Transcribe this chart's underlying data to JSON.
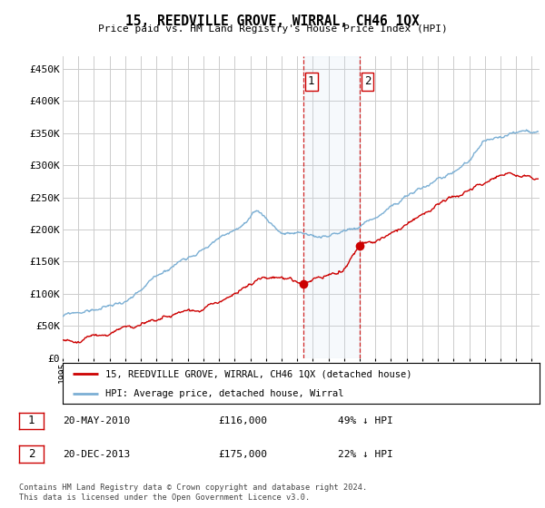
{
  "title": "15, REEDVILLE GROVE, WIRRAL, CH46 1QX",
  "subtitle": "Price paid vs. HM Land Registry's House Price Index (HPI)",
  "ylabel_ticks": [
    "£0",
    "£50K",
    "£100K",
    "£150K",
    "£200K",
    "£250K",
    "£300K",
    "£350K",
    "£400K",
    "£450K"
  ],
  "ytick_values": [
    0,
    50000,
    100000,
    150000,
    200000,
    250000,
    300000,
    350000,
    400000,
    450000
  ],
  "ylim": [
    0,
    470000
  ],
  "xlim_start": 1995.0,
  "xlim_end": 2025.5,
  "hpi_color": "#7bafd4",
  "sale_color": "#cc0000",
  "marker1_x": 2010.38,
  "marker1_y": 116000,
  "marker1_label": "1",
  "marker2_x": 2013.97,
  "marker2_y": 175000,
  "marker2_label": "2",
  "vline1_x": 2010.38,
  "vline2_x": 2013.97,
  "legend_sale": "15, REEDVILLE GROVE, WIRRAL, CH46 1QX (detached house)",
  "legend_hpi": "HPI: Average price, detached house, Wirral",
  "note1_label": "1",
  "note1_date": "20-MAY-2010",
  "note1_price": "£116,000",
  "note1_pct": "49% ↓ HPI",
  "note2_label": "2",
  "note2_date": "20-DEC-2013",
  "note2_price": "£175,000",
  "note2_pct": "22% ↓ HPI",
  "footer": "Contains HM Land Registry data © Crown copyright and database right 2024.\nThis data is licensed under the Open Government Licence v3.0.",
  "background_color": "#ffffff",
  "grid_color": "#cccccc"
}
